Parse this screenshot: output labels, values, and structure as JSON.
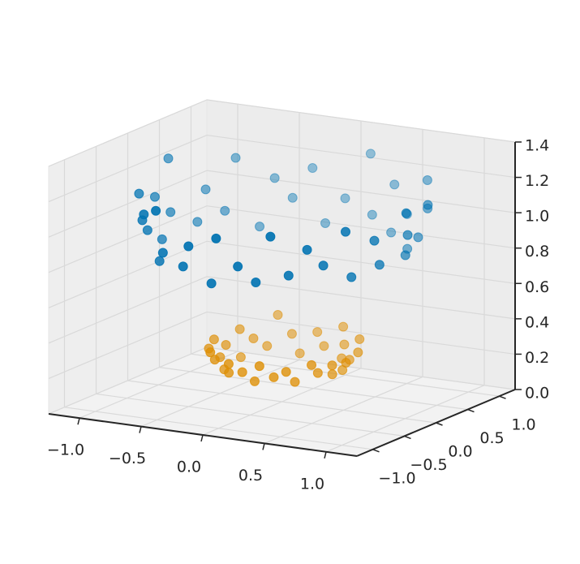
{
  "chart_data": {
    "type": "scatter3d",
    "xlim": [
      -1.25,
      1.25
    ],
    "ylim": [
      -1.25,
      1.25
    ],
    "zlim": [
      0,
      1.4
    ],
    "xticks": [
      {
        "value": -1.0,
        "label": "−1.0"
      },
      {
        "value": -0.5,
        "label": "−0.5"
      },
      {
        "value": 0.0,
        "label": "0.0"
      },
      {
        "value": 0.5,
        "label": "0.5"
      },
      {
        "value": 1.0,
        "label": "1.0"
      }
    ],
    "yticks": [
      {
        "value": -1.0,
        "label": "−1.0"
      },
      {
        "value": -0.5,
        "label": "−0.5"
      },
      {
        "value": 0.0,
        "label": "0.0"
      },
      {
        "value": 0.5,
        "label": "0.5"
      },
      {
        "value": 1.0,
        "label": "1.0"
      }
    ],
    "zticks": [
      {
        "value": 0.0,
        "label": "0.0"
      },
      {
        "value": 0.2,
        "label": "0.2"
      },
      {
        "value": 0.4,
        "label": "0.4"
      },
      {
        "value": 0.6,
        "label": "0.6"
      },
      {
        "value": 0.8,
        "label": "0.8"
      },
      {
        "value": 1.0,
        "label": "1.0"
      },
      {
        "value": 1.2,
        "label": "1.2"
      },
      {
        "value": 1.4,
        "label": "1.4"
      }
    ],
    "grid": true,
    "series": [
      {
        "color": "#0173b2",
        "x": [
          1.02,
          0.94,
          1.04,
          0.91,
          0.91,
          0.73,
          0.78,
          0.61,
          0.47,
          0.41,
          0.25,
          0.15,
          0.0,
          -0.12,
          -0.28,
          -0.38,
          -0.52,
          -0.55,
          -0.77,
          -0.76,
          -0.88,
          -0.87,
          -1.07,
          -0.97,
          -1.03,
          -0.91,
          -1.02,
          -0.9,
          -0.87,
          -0.71,
          -0.74,
          -0.58,
          -0.54,
          -0.36,
          -0.26,
          -0.12,
          0.0,
          0.13,
          0.24,
          0.41,
          0.47,
          0.62,
          0.69,
          0.85,
          0.8,
          0.95,
          0.92,
          1.08
        ],
        "y": [
          0.0,
          0.12,
          0.28,
          0.38,
          0.53,
          0.56,
          0.78,
          0.79,
          0.81,
          0.98,
          0.94,
          1.11,
          1.0,
          0.92,
          1.03,
          0.91,
          0.9,
          0.72,
          0.77,
          0.58,
          0.51,
          0.36,
          0.29,
          0.13,
          0.0,
          -0.12,
          -0.27,
          -0.37,
          -0.51,
          -0.55,
          -0.74,
          -0.75,
          -0.94,
          -0.86,
          -0.97,
          -0.88,
          -1.04,
          -0.95,
          -0.88,
          -0.98,
          -0.81,
          -0.81,
          -0.69,
          -0.65,
          -0.46,
          -0.39,
          -0.25,
          -0.14
        ],
        "z": [
          1.04,
          0.9,
          1.17,
          0.96,
          1.1,
          0.85,
          1.21,
          1.0,
          0.88,
          1.12,
          0.94,
          1.25,
          1.0,
          0.86,
          1.14,
          0.98,
          1.08,
          0.83,
          1.19,
          0.92,
          1.04,
          0.88,
          1.23,
          0.96,
          1.06,
          0.85,
          1.12,
          0.94,
          1.02,
          0.81,
          1.1,
          0.9,
          1.17,
          0.86,
          1.0,
          0.79,
          1.08,
          0.92,
          0.83,
          1.12,
          0.88,
          1.04,
          0.94,
          1.14,
          0.85,
          1.06,
          0.9,
          1.19
        ]
      },
      {
        "color": "#de8f05",
        "x": [
          0.52,
          0.45,
          0.52,
          0.42,
          0.44,
          0.3,
          0.27,
          0.21,
          0.09,
          0.0,
          -0.08,
          -0.18,
          -0.31,
          -0.31,
          -0.4,
          -0.49,
          -0.41,
          -0.5,
          -0.55,
          -0.46,
          -0.5,
          -0.36,
          -0.38,
          -0.36,
          -0.23,
          -0.18,
          -0.08,
          0.0,
          0.09,
          0.16,
          0.26,
          0.28,
          0.42,
          0.42,
          0.5,
          0.45
        ],
        "y": [
          0.0,
          0.08,
          0.19,
          0.25,
          0.37,
          0.36,
          0.46,
          0.56,
          0.49,
          0.56,
          0.44,
          0.51,
          0.54,
          0.37,
          0.33,
          0.29,
          0.15,
          0.09,
          0.0,
          -0.08,
          -0.18,
          -0.21,
          -0.32,
          -0.43,
          -0.39,
          -0.49,
          -0.47,
          -0.43,
          -0.53,
          -0.44,
          -0.44,
          -0.34,
          -0.35,
          -0.25,
          -0.18,
          -0.08
        ],
        "z": [
          0.27,
          0.21,
          0.3,
          0.24,
          0.34,
          0.22,
          0.28,
          0.36,
          0.25,
          0.31,
          0.2,
          0.29,
          0.38,
          0.23,
          0.27,
          0.32,
          0.19,
          0.26,
          0.3,
          0.22,
          0.28,
          0.18,
          0.25,
          0.31,
          0.2,
          0.27,
          0.23,
          0.18,
          0.29,
          0.22,
          0.26,
          0.19,
          0.3,
          0.24,
          0.28,
          0.21
        ]
      }
    ]
  }
}
